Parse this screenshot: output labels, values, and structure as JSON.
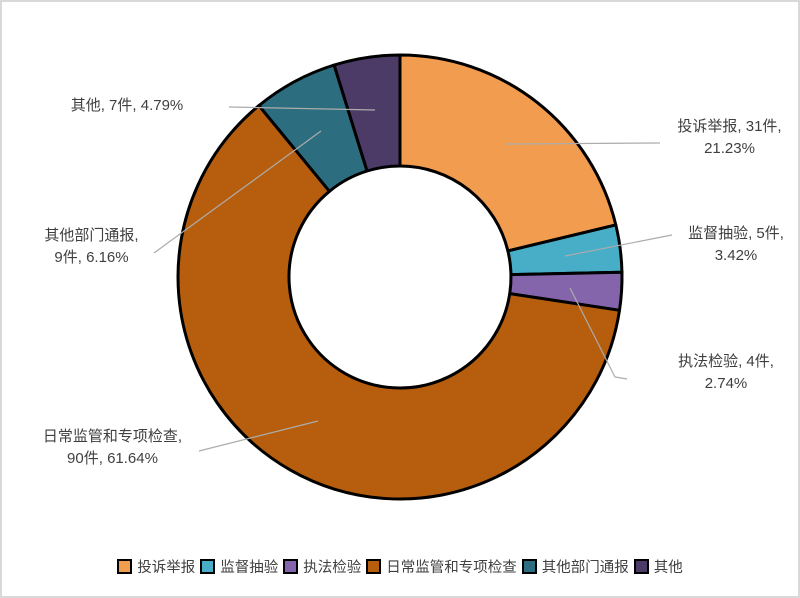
{
  "page": {
    "background": "#FFFFFF",
    "border_color": "#D9D9D9"
  },
  "chart_data": {
    "type": "pie",
    "subtype": "donut",
    "title": "",
    "categories": [
      "投诉举报",
      "监督抽验",
      "执法检验",
      "日常监管和专项检查",
      "其他部门通报",
      "其他"
    ],
    "values": [
      31,
      5,
      4,
      90,
      9,
      7
    ],
    "unit": "件",
    "percent_labels": [
      "21.23%",
      "3.42%",
      "2.74%",
      "61.64%",
      "6.16%",
      "4.79%"
    ],
    "colors": [
      "#F29C50",
      "#48ADC7",
      "#8465AC",
      "#B65E0E",
      "#2C6E80",
      "#4C3A67"
    ],
    "slice_border_color": "#000000",
    "leader_line_color": "#ACACAC",
    "label_text_color": "#3F3F3F",
    "inner_radius_ratio": 0.5,
    "start_angle_deg": 0,
    "direction": "clockwise",
    "legend_position": "bottom",
    "label_lines": [
      [
        "投诉举报, 31件,",
        "21.23%"
      ],
      [
        "监督抽验, 5件,",
        "3.42%"
      ],
      [
        "执法检验, 4件,",
        "2.74%"
      ],
      [
        "日常监管和专项检查,",
        "90件, 61.64%"
      ],
      [
        "其他部门通报,",
        "9件, 6.16%"
      ],
      [
        "其他, 7件, 4.79%"
      ]
    ]
  }
}
